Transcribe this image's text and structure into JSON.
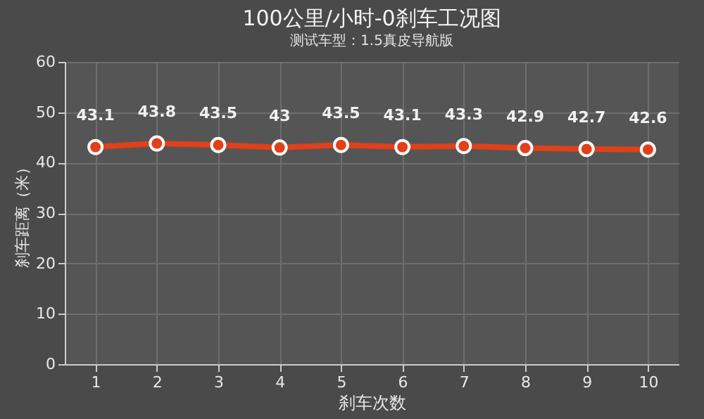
{
  "chart_data": {
    "type": "line",
    "title": "100公里/小时-0刹车工况图",
    "subtitle": "测试车型：1.5真皮导航版",
    "xlabel": "刹车次数",
    "ylabel": "刹车距离（米）",
    "categories": [
      "1",
      "2",
      "3",
      "4",
      "5",
      "6",
      "7",
      "8",
      "9",
      "10"
    ],
    "series": [
      {
        "color": "#e0401a",
        "values": [
          43.1,
          43.8,
          43.5,
          43,
          43.5,
          43.1,
          43.3,
          42.9,
          42.7,
          42.6
        ]
      }
    ],
    "ylim": [
      0,
      60
    ],
    "yticks": [
      0,
      10,
      20,
      30,
      40,
      50,
      60
    ],
    "grid": true,
    "marker": "circle",
    "line_style": "solid",
    "data_labels": true
  }
}
